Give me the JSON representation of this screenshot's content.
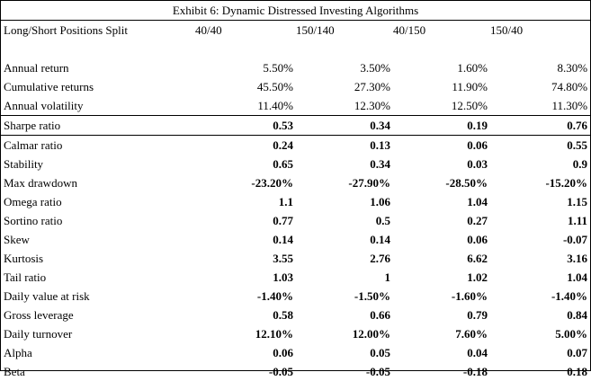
{
  "title": "Exhibit 6: Dynamic Distressed Investing Algorithms",
  "header": {
    "label": "Long/Short Positions Split",
    "columns": [
      "40/40",
      "150/140",
      "40/150",
      "150/40"
    ]
  },
  "rows": [
    {
      "label": "Annual return",
      "values": [
        "5.50%",
        "3.50%",
        "1.60%",
        "8.30%"
      ]
    },
    {
      "label": "Cumulative returns",
      "values": [
        "45.50%",
        "27.30%",
        "11.90%",
        "74.80%"
      ]
    },
    {
      "label": "Annual volatility",
      "values": [
        "11.40%",
        "12.30%",
        "12.50%",
        "11.30%"
      ]
    },
    {
      "label": "Sharpe ratio",
      "values": [
        "0.53",
        "0.34",
        "0.19",
        "0.76"
      ]
    },
    {
      "label": "Calmar ratio",
      "values": [
        "0.24",
        "0.13",
        "0.06",
        "0.55"
      ]
    },
    {
      "label": "Stability",
      "values": [
        "0.65",
        "0.34",
        "0.03",
        "0.9"
      ]
    },
    {
      "label": "Max drawdown",
      "values": [
        "-23.20%",
        "-27.90%",
        "-28.50%",
        "-15.20%"
      ]
    },
    {
      "label": "Omega ratio",
      "values": [
        "1.1",
        "1.06",
        "1.04",
        "1.15"
      ]
    },
    {
      "label": "Sortino ratio",
      "values": [
        "0.77",
        "0.5",
        "0.27",
        "1.11"
      ]
    },
    {
      "label": "Skew",
      "values": [
        "0.14",
        "0.14",
        "0.06",
        "-0.07"
      ]
    },
    {
      "label": "Kurtosis",
      "values": [
        "3.55",
        "2.76",
        "6.62",
        "3.16"
      ]
    },
    {
      "label": "Tail ratio",
      "values": [
        "1.03",
        "1",
        "1.02",
        "1.04"
      ]
    },
    {
      "label": "Daily value at risk",
      "values": [
        "-1.40%",
        "-1.50%",
        "-1.60%",
        "-1.40%"
      ]
    },
    {
      "label": "Gross leverage",
      "values": [
        "0.58",
        "0.66",
        "0.79",
        "0.84"
      ]
    },
    {
      "label": "Daily turnover",
      "values": [
        "12.10%",
        "12.00%",
        "7.60%",
        "5.00%"
      ]
    },
    {
      "label": "Alpha",
      "values": [
        "0.06",
        "0.05",
        "0.04",
        "0.07"
      ]
    },
    {
      "label": "Beta",
      "values": [
        "-0.05",
        "-0.05",
        "-0.18",
        "0.18"
      ]
    }
  ]
}
